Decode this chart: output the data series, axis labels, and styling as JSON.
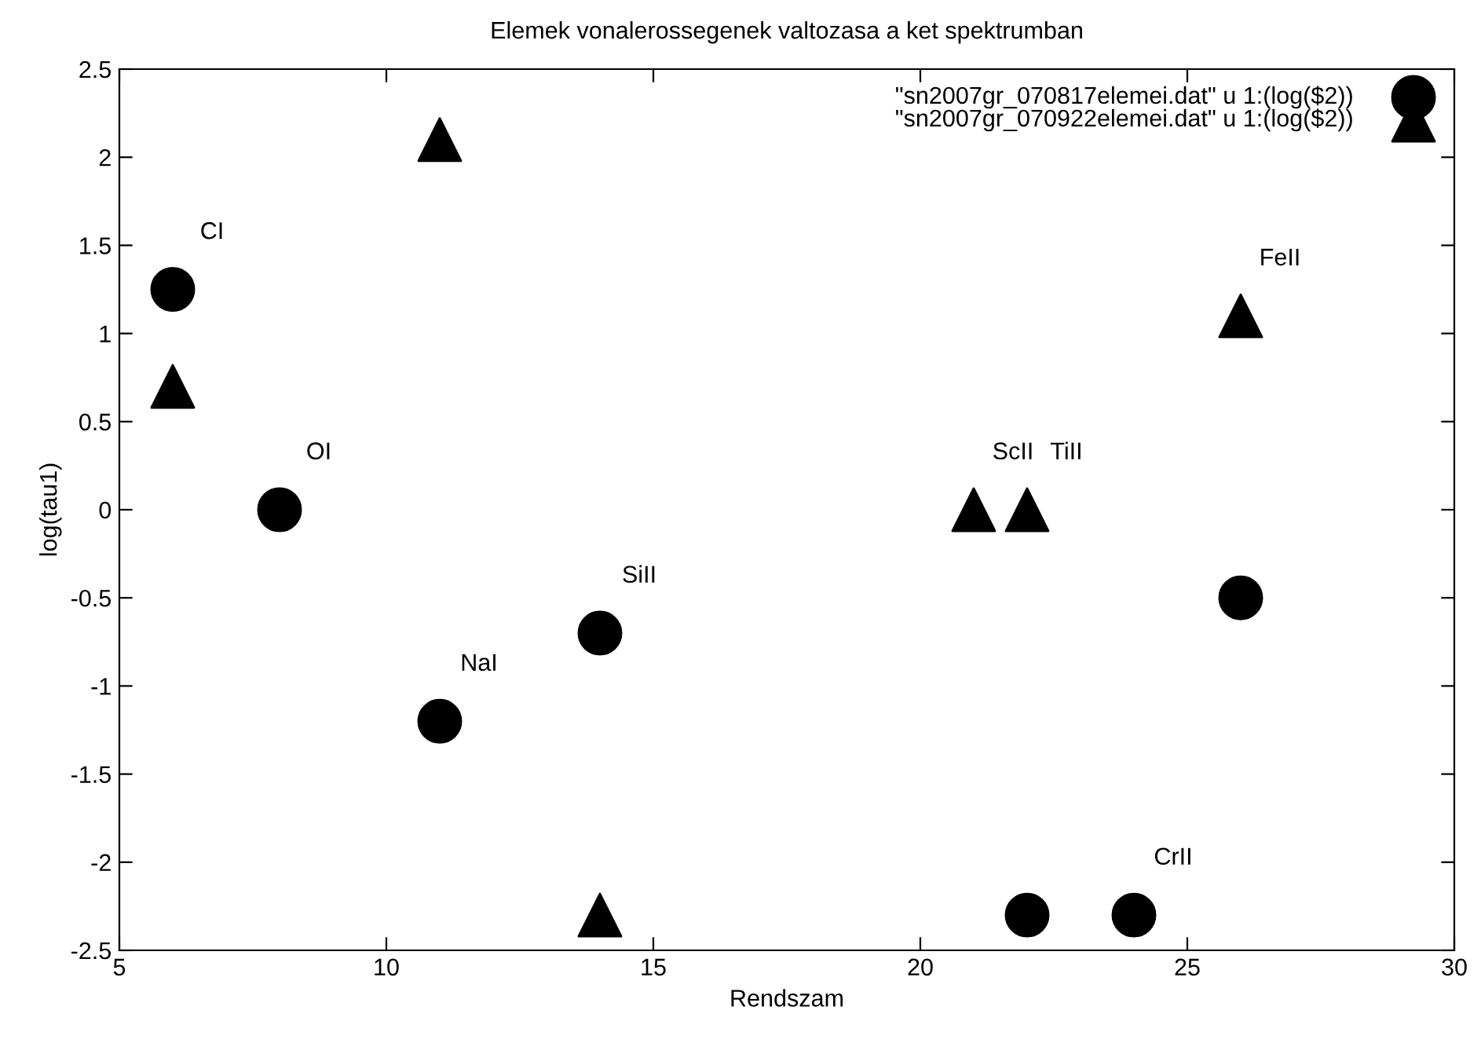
{
  "chart_data": {
    "type": "scatter",
    "title": "Elemek vonalerossegenek valtozasa a ket spektrumban",
    "xlabel": "Rendszam",
    "ylabel": "log(tau1)",
    "series": [
      {
        "name": "\"sn2007gr_070817elemei.dat\" u 1:(log($2))",
        "color": "#000000",
        "marker": "circle",
        "x": [
          6,
          8,
          11,
          14,
          22,
          24,
          26
        ],
        "values": [
          1.25,
          0,
          -1.2,
          -0.7,
          -2.3,
          -2.3,
          -0.5
        ]
      },
      {
        "name": "\"sn2007gr_070922elemei.dat\" u 1:(log($2))",
        "color": "#000000",
        "marker": "triangle",
        "x": [
          6,
          8,
          11,
          14,
          21,
          22,
          26
        ],
        "values": [
          0.7,
          null,
          2.1,
          -2.3,
          0,
          0,
          1.1
        ]
      }
    ],
    "annotations": [
      {
        "text": "CI",
        "x": 6,
        "y": 1.25
      },
      {
        "text": "OI",
        "x": 8,
        "y": 0
      },
      {
        "text": "NaI",
        "x": 11,
        "y": -1.2
      },
      {
        "text": "SiII",
        "x": 14,
        "y": -0.7
      },
      {
        "text": "ScII",
        "x": 21,
        "y": 0
      },
      {
        "text": "TiII",
        "x": 22,
        "y": 0
      },
      {
        "text": "CrII",
        "x": 24,
        "y": -2.3
      },
      {
        "text": "FeII",
        "x": 26,
        "y": 1.1
      }
    ],
    "xlim": [
      5,
      30
    ],
    "xticks": [
      5,
      10,
      15,
      20,
      25,
      30
    ],
    "ylim": [
      -2.5,
      2.5
    ],
    "yticks": [
      -2.5,
      -2,
      -1.5,
      -1,
      -0.5,
      0,
      0.5,
      1,
      1.5,
      2,
      2.5
    ],
    "grid": false,
    "legend": "top right"
  }
}
